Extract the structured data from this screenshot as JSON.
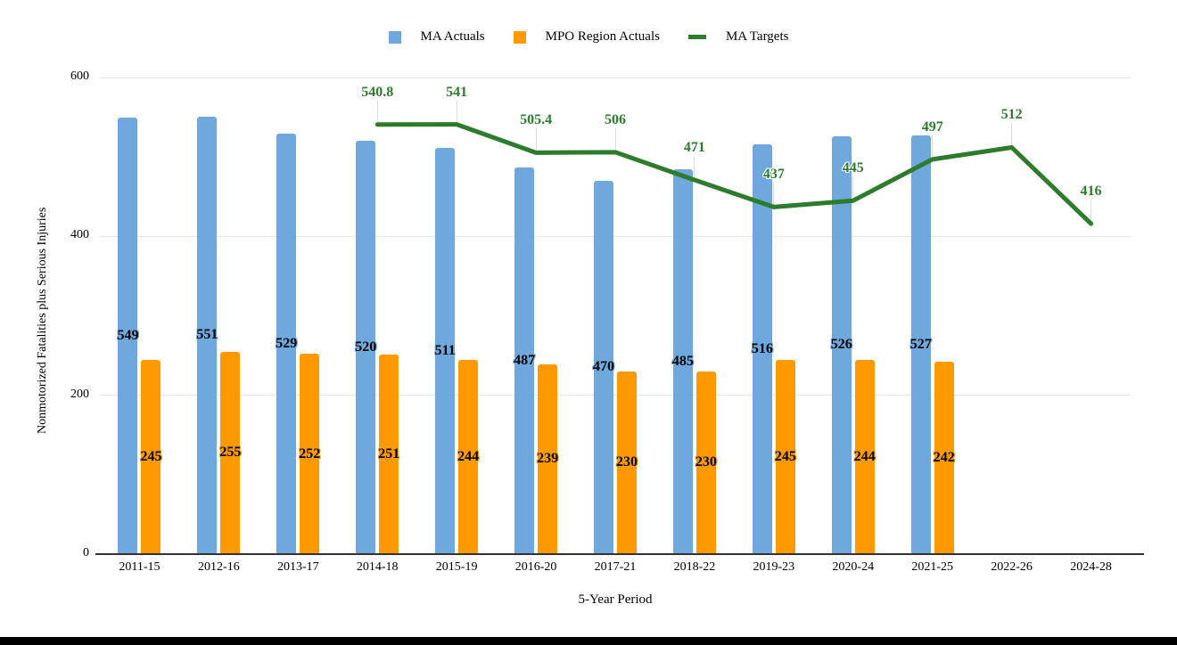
{
  "legend": {
    "items": [
      "MA Actuals",
      "MPO Region Actuals",
      "MA Targets"
    ]
  },
  "colors": {
    "grid": "#e6e6e6",
    "axis": "#333333",
    "leader": "#dcdcdc",
    "background": "#ffffff",
    "footer_bar": "#000000"
  },
  "chart_data": {
    "type": "bar",
    "subtype": "grouped-bars-with-line-overlay",
    "title": "",
    "xlabel": "5-Year Period",
    "ylabel": "Nonmotorized Fatalities plus Serious Injuries",
    "ylim": [
      0,
      600
    ],
    "yticks": [
      0,
      200,
      400,
      600
    ],
    "grid": true,
    "legend_position": "top",
    "categories": [
      "2011-15",
      "2012-16",
      "2013-17",
      "2014-18",
      "2015-19",
      "2016-20",
      "2017-21",
      "2018-22",
      "2019-23",
      "2020-24",
      "2021-25",
      "2022-26",
      "2024-28"
    ],
    "series": [
      {
        "name": "MA Actuals",
        "type": "bar",
        "color": "#6fa8dc",
        "values": [
          549,
          551,
          529,
          520,
          511,
          487,
          470,
          485,
          516,
          526,
          527,
          null,
          null
        ]
      },
      {
        "name": "MPO Region Actuals",
        "type": "bar",
        "color": "#ff9900",
        "values": [
          245,
          255,
          252,
          251,
          244,
          239,
          230,
          230,
          245,
          244,
          242,
          null,
          null
        ]
      },
      {
        "name": "MA Targets",
        "type": "line",
        "color": "#2d7c2c",
        "values": [
          null,
          null,
          null,
          540.8,
          541,
          505.4,
          506,
          471,
          437,
          445,
          497,
          512,
          416
        ]
      }
    ]
  }
}
